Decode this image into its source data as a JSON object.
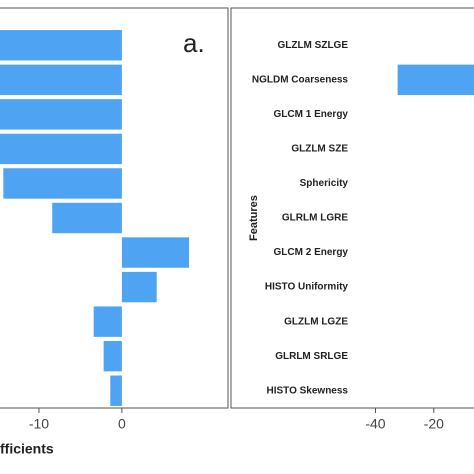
{
  "chart_data": [
    {
      "type": "barh",
      "annotation": "a.",
      "xlabel": "fficients",
      "color": "#4ea3f2",
      "categories": [
        null,
        null,
        null,
        null,
        null,
        null,
        null,
        null,
        null,
        null,
        null
      ],
      "values": [
        -16,
        -16,
        -16,
        -16,
        -14.3,
        -8.4,
        8.1,
        4.2,
        -3.4,
        -2.2,
        -1.4
      ],
      "xlim": [
        -14.7,
        12.8
      ],
      "xticks": [
        -10,
        0
      ]
    },
    {
      "type": "barh",
      "ylabel": "Features",
      "color": "#4ea3f2",
      "categories": [
        "GLZLM SZLGE",
        "NGLDM Coarseness",
        "GLCM 1 Energy",
        "GLZLM SZE",
        "Sphericity",
        "GLRLM LGRE",
        "GLCM 2 Energy",
        "HISTO Uniformity",
        "GLZLM LGZE",
        "GLRLM SRLGE",
        "HISTO Skewness"
      ],
      "values": [
        null,
        -32.4,
        null,
        null,
        null,
        null,
        null,
        null,
        null,
        null,
        null
      ],
      "xlim": [
        -46,
        -6.2
      ],
      "xticks": [
        -40,
        -20
      ]
    }
  ]
}
